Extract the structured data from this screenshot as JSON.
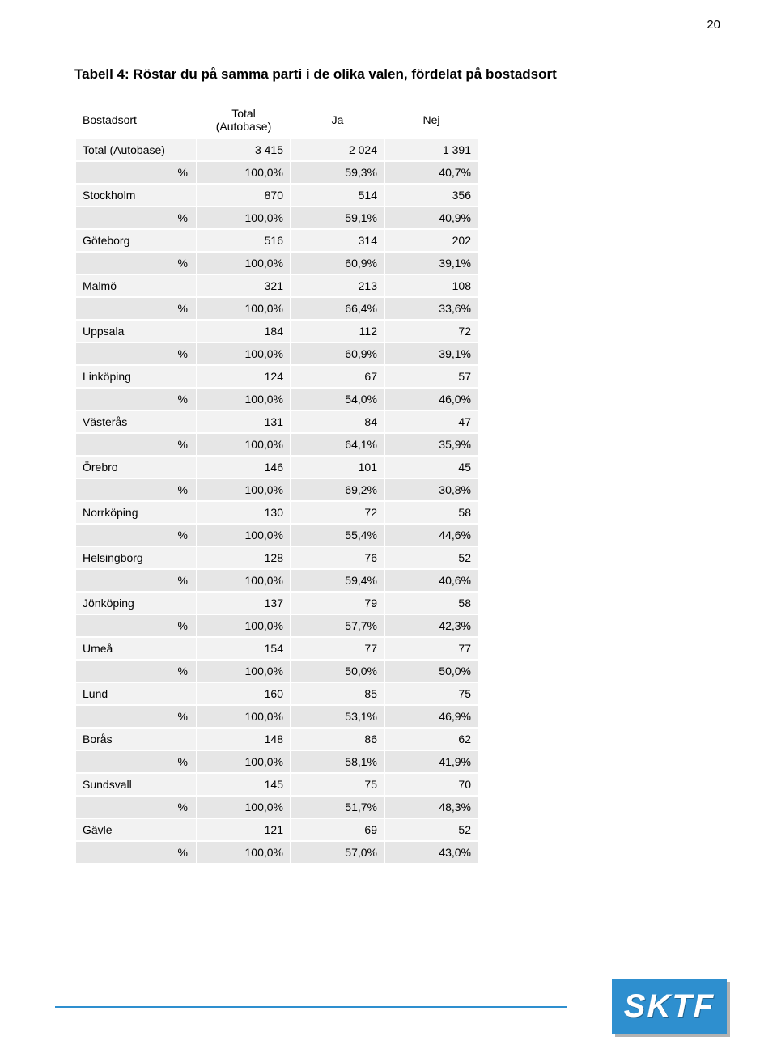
{
  "page_number": "20",
  "title": "Tabell 4: Röstar du på samma parti i de olika valen, fördelat på bostadsort",
  "logo_text": "SKTF",
  "logo_bg": "#2e8fcf",
  "logo_fg": "#ffffff",
  "table": {
    "columns": [
      "Bostadsort",
      "Total\n(Autobase)",
      "Ja",
      "Nej"
    ],
    "rows": [
      {
        "label": "Total\n(Autobase)",
        "vals": [
          "3 415",
          "2 024",
          "1 391"
        ],
        "pct": [
          "100,0%",
          "59,3%",
          "40,7%"
        ]
      },
      {
        "label": "Stockholm",
        "vals": [
          "870",
          "514",
          "356"
        ],
        "pct": [
          "100,0%",
          "59,1%",
          "40,9%"
        ]
      },
      {
        "label": "Göteborg",
        "vals": [
          "516",
          "314",
          "202"
        ],
        "pct": [
          "100,0%",
          "60,9%",
          "39,1%"
        ]
      },
      {
        "label": "Malmö",
        "vals": [
          "321",
          "213",
          "108"
        ],
        "pct": [
          "100,0%",
          "66,4%",
          "33,6%"
        ]
      },
      {
        "label": "Uppsala",
        "vals": [
          "184",
          "112",
          "72"
        ],
        "pct": [
          "100,0%",
          "60,9%",
          "39,1%"
        ]
      },
      {
        "label": "Linköping",
        "vals": [
          "124",
          "67",
          "57"
        ],
        "pct": [
          "100,0%",
          "54,0%",
          "46,0%"
        ]
      },
      {
        "label": "Västerås",
        "vals": [
          "131",
          "84",
          "47"
        ],
        "pct": [
          "100,0%",
          "64,1%",
          "35,9%"
        ]
      },
      {
        "label": "Örebro",
        "vals": [
          "146",
          "101",
          "45"
        ],
        "pct": [
          "100,0%",
          "69,2%",
          "30,8%"
        ]
      },
      {
        "label": "Norrköping",
        "vals": [
          "130",
          "72",
          "58"
        ],
        "pct": [
          "100,0%",
          "55,4%",
          "44,6%"
        ]
      },
      {
        "label": "Helsingborg",
        "vals": [
          "128",
          "76",
          "52"
        ],
        "pct": [
          "100,0%",
          "59,4%",
          "40,6%"
        ]
      },
      {
        "label": "Jönköping",
        "vals": [
          "137",
          "79",
          "58"
        ],
        "pct": [
          "100,0%",
          "57,7%",
          "42,3%"
        ]
      },
      {
        "label": "Umeå",
        "vals": [
          "154",
          "77",
          "77"
        ],
        "pct": [
          "100,0%",
          "50,0%",
          "50,0%"
        ]
      },
      {
        "label": "Lund",
        "vals": [
          "160",
          "85",
          "75"
        ],
        "pct": [
          "100,0%",
          "53,1%",
          "46,9%"
        ]
      },
      {
        "label": "Borås",
        "vals": [
          "148",
          "86",
          "62"
        ],
        "pct": [
          "100,0%",
          "58,1%",
          "41,9%"
        ]
      },
      {
        "label": "Sundsvall",
        "vals": [
          "145",
          "75",
          "70"
        ],
        "pct": [
          "100,0%",
          "51,7%",
          "48,3%"
        ]
      },
      {
        "label": "Gävle",
        "vals": [
          "121",
          "69",
          "52"
        ],
        "pct": [
          "100,0%",
          "57,0%",
          "43,0%"
        ]
      }
    ],
    "pct_row_label": "%",
    "header_bg": "#ffffff",
    "value_row_bg": "#f2f2f2",
    "pct_row_bg": "#e6e6e6",
    "cell_spacing": 2,
    "fontsize": 14
  }
}
